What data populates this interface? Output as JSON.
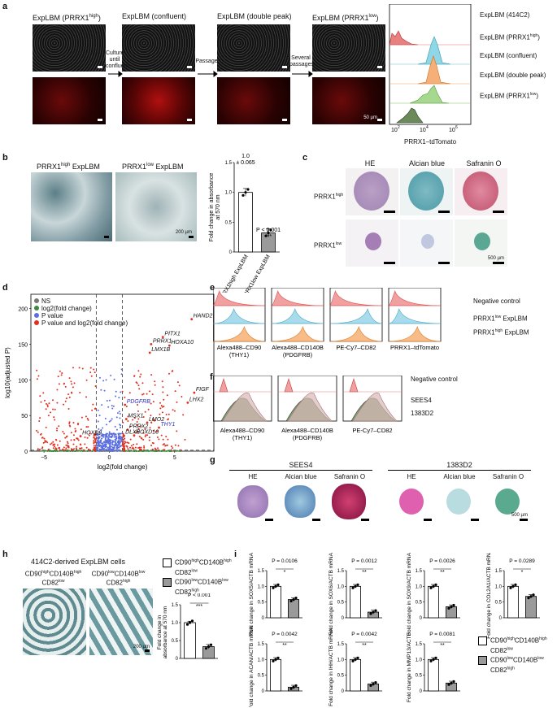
{
  "panels": {
    "a": {
      "label": "a",
      "titles": [
        "ExpLBM (PRRX1",
        "ExpLBM (confluent)",
        "ExpLBM (double peak)",
        "ExpLBM (PRRX1"
      ],
      "title_sups": [
        "high",
        "low"
      ],
      "title_close": ")",
      "arrows": [
        "Culture until confluent",
        "Passage",
        "Several passages"
      ],
      "scale": "50 µm",
      "hist_labels": [
        "ExpLBM (414C2)",
        "ExpLBM (PRRX1",
        "ExpLBM (confluent)",
        "ExpLBM (double peak)",
        "ExpLBM (PRRX1"
      ],
      "xaxis_label": "PRRX1–tdTomato",
      "x_ticks": [
        "10",
        "10",
        "10"
      ],
      "x_tick_exps": [
        "2",
        "4",
        "6"
      ]
    },
    "b": {
      "label": "b",
      "img_titles_main": [
        "PRRX1",
        "PRRX1"
      ],
      "img_titles_sup": [
        "high",
        "low"
      ],
      "img_titles_tail": " ExpLBM",
      "scale": "200 µm",
      "ylabel": "Fold change in absorbance at 570 nm",
      "annot_top": "1.0\n± 0.065",
      "annot_p": "P < 0.001",
      "stars": "***",
      "xcats": [
        "PRRX1high ExpLBM",
        "PRRX1low ExpLBM"
      ],
      "yticks": [
        "0",
        "0.5",
        "1.0",
        "1.5"
      ]
    },
    "c": {
      "label": "c",
      "col_titles": [
        "HE",
        "Alcian blue",
        "Safranin O"
      ],
      "row_labels": [
        "PRRX1",
        "PRRX1"
      ],
      "row_sups": [
        "high",
        "low"
      ],
      "scale": "500 µm"
    },
    "d": {
      "label": "d",
      "legend": [
        "NS",
        "log2(fold change)",
        "P value",
        "P value and log2(fold change)"
      ],
      "legend_colors": [
        "#777777",
        "#3a8a3a",
        "#5a6ee0",
        "#e03020"
      ],
      "ylabel": "log10(adjusted P)",
      "xlabel": "log2(fold change)",
      "genes": [
        "HAND2",
        "PITX1",
        "PRRX1",
        "HOXA10",
        "LMX1B",
        "FIGF",
        "LHX2",
        "PDGFRB",
        "MSX1",
        "LMO2",
        "THY1",
        "PRRX2",
        "HOXD10",
        "DLX5",
        "HOXD9"
      ]
    },
    "e": {
      "label": "e",
      "legend": [
        "Negative control",
        "PRRX1low ExpLBM",
        "PRRX1high ExpLBM"
      ],
      "xlabels": [
        "Alexa488–CD90\n(THY1)",
        "Alexa488–CD140B\n(PDGFRB)",
        "PE-Cy7–CD82",
        "PRRX1–tdTomato"
      ]
    },
    "f": {
      "label": "f",
      "legend": [
        "Negative control",
        "SEES4",
        "1383D2"
      ],
      "xlabels": [
        "Alexa488–CD90\n(THY1)",
        "Alexa488–CD140B\n(PDGFRB)",
        "PE-Cy7–CD82"
      ]
    },
    "g": {
      "label": "g",
      "groups": [
        "SEES4",
        "1383D2"
      ],
      "col_titles": [
        "HE",
        "Alcian blue",
        "Safranin O"
      ],
      "scale": "500 µm"
    },
    "h": {
      "label": "h",
      "title": "414C2-derived ExpLBM cells",
      "img_labels": [
        "CD90highCD140Bhigh CD82low",
        "CD90lowCD140Blow CD82high"
      ],
      "legend": [
        "CD90highCD140Bhigh CD82low",
        "CD90lowCD140Blow CD82high"
      ],
      "ylabel": "Fold change in absorbance at 570 nm",
      "p": "P < 0.001",
      "stars": "***",
      "scale": "200 µm"
    },
    "i": {
      "label": "i",
      "legend": [
        "CD90highCD140Bhigh CD82low",
        "CD90lowCD140Blow CD82high"
      ]
    }
  },
  "chart_data": [
    {
      "type": "bar",
      "panel": "b",
      "categories": [
        "PRRX1high ExpLBM",
        "PRRX1low ExpLBM"
      ],
      "values": [
        1.0,
        0.32
      ],
      "errors": [
        0.065,
        0.07
      ],
      "ylim": [
        0,
        1.5
      ],
      "ylabel": "Fold change in absorbance at 570 nm"
    },
    {
      "type": "bar",
      "panel": "h",
      "categories": [
        "CD90highCD140Bhigh CD82low",
        "CD90lowCD140Blow CD82high"
      ],
      "values": [
        1.0,
        0.33
      ],
      "ylim": [
        0,
        1.5
      ],
      "ylabel": "Fold change in absorbance at 570 nm"
    },
    {
      "type": "bar",
      "panel": "i",
      "subplots": [
        {
          "ylabel": "Fold change in SOX5/ACTB mRNA",
          "p": "P = 0.0106",
          "stars": "*",
          "values": [
            1.0,
            0.58
          ],
          "ylim": [
            0,
            1.5
          ]
        },
        {
          "ylabel": "Fold change in SOX6/ACTB mRNA",
          "p": "P = 0.0012",
          "stars": "**",
          "values": [
            1.0,
            0.18
          ],
          "ylim": [
            0,
            1.5
          ]
        },
        {
          "ylabel": "Fold change in SOX9/ACTB mRNA",
          "p": "P = 0.0026",
          "stars": "**",
          "values": [
            1.0,
            0.35
          ],
          "ylim": [
            0,
            1.5
          ]
        },
        {
          "ylabel": "Fold change in COL2A1/ACTB mRNA",
          "p": "P = 0.0289",
          "stars": "*",
          "values": [
            1.0,
            0.68
          ],
          "ylim": [
            0,
            1.5
          ]
        },
        {
          "ylabel": "Fold change in ACAN/ACTB mRNA",
          "p": "P = 0.0042",
          "stars": "**",
          "values": [
            1.0,
            0.12
          ],
          "ylim": [
            0,
            1.5
          ]
        },
        {
          "ylabel": "Fold change in IHH/ACTB mRNA",
          "p": "P = 0.0042",
          "stars": "**",
          "values": [
            1.0,
            0.22
          ],
          "ylim": [
            0,
            1.5
          ]
        },
        {
          "ylabel": "Fold change in MMP13/ACTB",
          "p": "P = 0.0081",
          "stars": "**",
          "values": [
            1.0,
            0.25
          ],
          "ylim": [
            0,
            1.5
          ]
        }
      ],
      "yticks": [
        "0",
        "0.5",
        "1.0",
        "1.5"
      ]
    },
    {
      "type": "scatter",
      "panel": "d",
      "xlim": [
        -6,
        8
      ],
      "ylim": [
        0,
        220
      ],
      "x_ticks": [
        "−5",
        "0",
        "5"
      ],
      "y_ticks": [
        "0",
        "50",
        "100",
        "150",
        "200"
      ],
      "labeled_points": [
        {
          "gene": "HAND2",
          "x": 6.3,
          "y": 185
        },
        {
          "gene": "PITX1",
          "x": 4.1,
          "y": 160
        },
        {
          "gene": "PRRX1",
          "x": 3.2,
          "y": 150
        },
        {
          "gene": "HOXA10",
          "x": 4.6,
          "y": 148
        },
        {
          "gene": "LMX1B",
          "x": 3.1,
          "y": 138
        },
        {
          "gene": "FIGF",
          "x": 6.5,
          "y": 82
        },
        {
          "gene": "LHX2",
          "x": 6.0,
          "y": 68
        },
        {
          "gene": "PDGFRB",
          "x": 1.2,
          "y": 65
        },
        {
          "gene": "MSX1",
          "x": 1.3,
          "y": 45
        },
        {
          "gene": "LMO2",
          "x": 2.9,
          "y": 40
        },
        {
          "gene": "THY1",
          "x": 3.8,
          "y": 33
        },
        {
          "gene": "PRRX2",
          "x": 1.4,
          "y": 30
        },
        {
          "gene": "HOXD10",
          "x": 1.9,
          "y": 22
        },
        {
          "gene": "DLX5",
          "x": 1.1,
          "y": 22
        },
        {
          "gene": "HOXD9",
          "x": -2.2,
          "y": 21
        }
      ]
    }
  ]
}
